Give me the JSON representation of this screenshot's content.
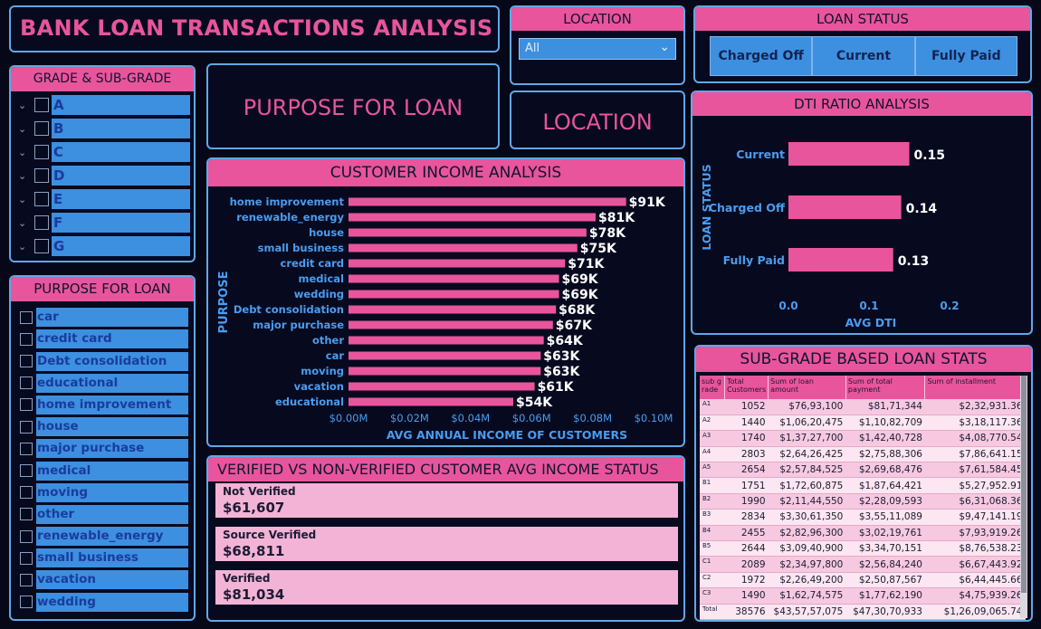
{
  "title": "BANK LOAN TRANSACTIONS ANALYSIS",
  "location_filter": {
    "header": "LOCATION",
    "selected": "All"
  },
  "loan_status_filter": {
    "header": "LOAN STATUS",
    "buttons": [
      "Charged Off",
      "Current",
      "Fully Paid"
    ]
  },
  "grade_filter": {
    "header": "GRADE & SUB-GRADE",
    "items": [
      "A",
      "B",
      "C",
      "D",
      "E",
      "F",
      "G"
    ]
  },
  "purpose_filter": {
    "header": "PURPOSE FOR LOAN",
    "items": [
      "car",
      "credit card",
      "Debt consolidation",
      "educational",
      "home improvement",
      "house",
      "major purchase",
      "medical",
      "moving",
      "other",
      "renewable_energy",
      "small business",
      "vacation",
      "wedding"
    ]
  },
  "nav": {
    "purpose": "PURPOSE FOR LOAN",
    "location": "LOCATION"
  },
  "colors": {
    "accent_pink": "#e8559d",
    "slicer_blue": "#3d8fe0",
    "border_blue": "#5fa8e8",
    "background": "#060818"
  },
  "income_chart": {
    "header": "CUSTOMER INCOME ANALYSIS",
    "chart_data": {
      "type": "bar",
      "orientation": "horizontal",
      "ylabel": "PURPOSE",
      "xlabel": "AVG ANNUAL INCOME OF CUSTOMERS",
      "categories": [
        "home improvement",
        "renewable_energy",
        "house",
        "small business",
        "credit card",
        "medical",
        "wedding",
        "Debt consolidation",
        "major purchase",
        "other",
        "car",
        "moving",
        "vacation",
        "educational"
      ],
      "values": [
        91000,
        81000,
        78000,
        75000,
        71000,
        69000,
        69000,
        68000,
        67000,
        64000,
        63000,
        63000,
        61000,
        54000
      ],
      "data_labels": [
        "$91K",
        "$81K",
        "$78K",
        "$75K",
        "$71K",
        "$69K",
        "$69K",
        "$68K",
        "$67K",
        "$64K",
        "$63K",
        "$63K",
        "$61K",
        "$54K"
      ],
      "xlim": [
        0,
        100000
      ],
      "xticks": [
        "$0.00M",
        "$0.02M",
        "$0.04M",
        "$0.06M",
        "$0.08M",
        "$0.10M"
      ],
      "grid": false
    }
  },
  "dti_chart": {
    "header": "DTI RATIO ANALYSIS",
    "chart_data": {
      "type": "bar",
      "orientation": "horizontal",
      "ylabel": "LOAN STATUS",
      "xlabel": "AVG DTI",
      "categories": [
        "Current",
        "Charged Off",
        "Fully Paid"
      ],
      "values": [
        0.15,
        0.14,
        0.13
      ],
      "data_labels": [
        "0.15",
        "0.14",
        "0.13"
      ],
      "xlim": [
        0,
        0.2
      ],
      "xticks": [
        "0.0",
        "0.1",
        "0.2"
      ],
      "grid": false
    }
  },
  "verified": {
    "header": "VERIFIED VS NON-VERIFIED CUSTOMER AVG INCOME STATUS",
    "cards": [
      {
        "label": "Not Verified",
        "value": "$61,607"
      },
      {
        "label": "Source Verified",
        "value": "$68,811"
      },
      {
        "label": "Verified",
        "value": "$81,034"
      }
    ]
  },
  "subgrade_table": {
    "header": "SUB-GRADE BASED LOAN STATS",
    "columns": [
      "sub g rade",
      "Total Customers",
      "Sum of loan amount",
      "Sum of total payment",
      "Sum of installment"
    ],
    "rows": [
      [
        "A1",
        "1052",
        "$76,93,100",
        "$81,71,344",
        "$2,32,931.36"
      ],
      [
        "A2",
        "1440",
        "$1,06,20,475",
        "$1,10,82,709",
        "$3,18,117.36"
      ],
      [
        "A3",
        "1740",
        "$1,37,27,700",
        "$1,42,40,728",
        "$4,08,770.54"
      ],
      [
        "A4",
        "2803",
        "$2,64,26,425",
        "$2,75,88,306",
        "$7,86,641.15"
      ],
      [
        "A5",
        "2654",
        "$2,57,84,525",
        "$2,69,68,476",
        "$7,61,584.45"
      ],
      [
        "B1",
        "1751",
        "$1,72,60,875",
        "$1,87,64,421",
        "$5,27,952.91"
      ],
      [
        "B2",
        "1990",
        "$2,11,44,550",
        "$2,28,09,593",
        "$6,31,068.36"
      ],
      [
        "B3",
        "2834",
        "$3,30,61,350",
        "$3,55,11,089",
        "$9,47,141.19"
      ],
      [
        "B4",
        "2455",
        "$2,82,96,300",
        "$3,02,19,761",
        "$7,93,919.26"
      ],
      [
        "B5",
        "2644",
        "$3,09,40,900",
        "$3,34,70,151",
        "$8,76,538.23"
      ],
      [
        "C1",
        "2089",
        "$2,34,97,800",
        "$2,56,84,240",
        "$6,67,443.92"
      ],
      [
        "C2",
        "1972",
        "$2,26,49,200",
        "$2,50,87,567",
        "$6,44,445.66"
      ],
      [
        "C3",
        "1490",
        "$1,62,74,575",
        "$1,77,62,190",
        "$4,75,939.26"
      ],
      [
        "Total",
        "38576",
        "$43,57,57,075",
        "$47,30,70,933",
        "$1,26,09,065.74"
      ]
    ]
  }
}
